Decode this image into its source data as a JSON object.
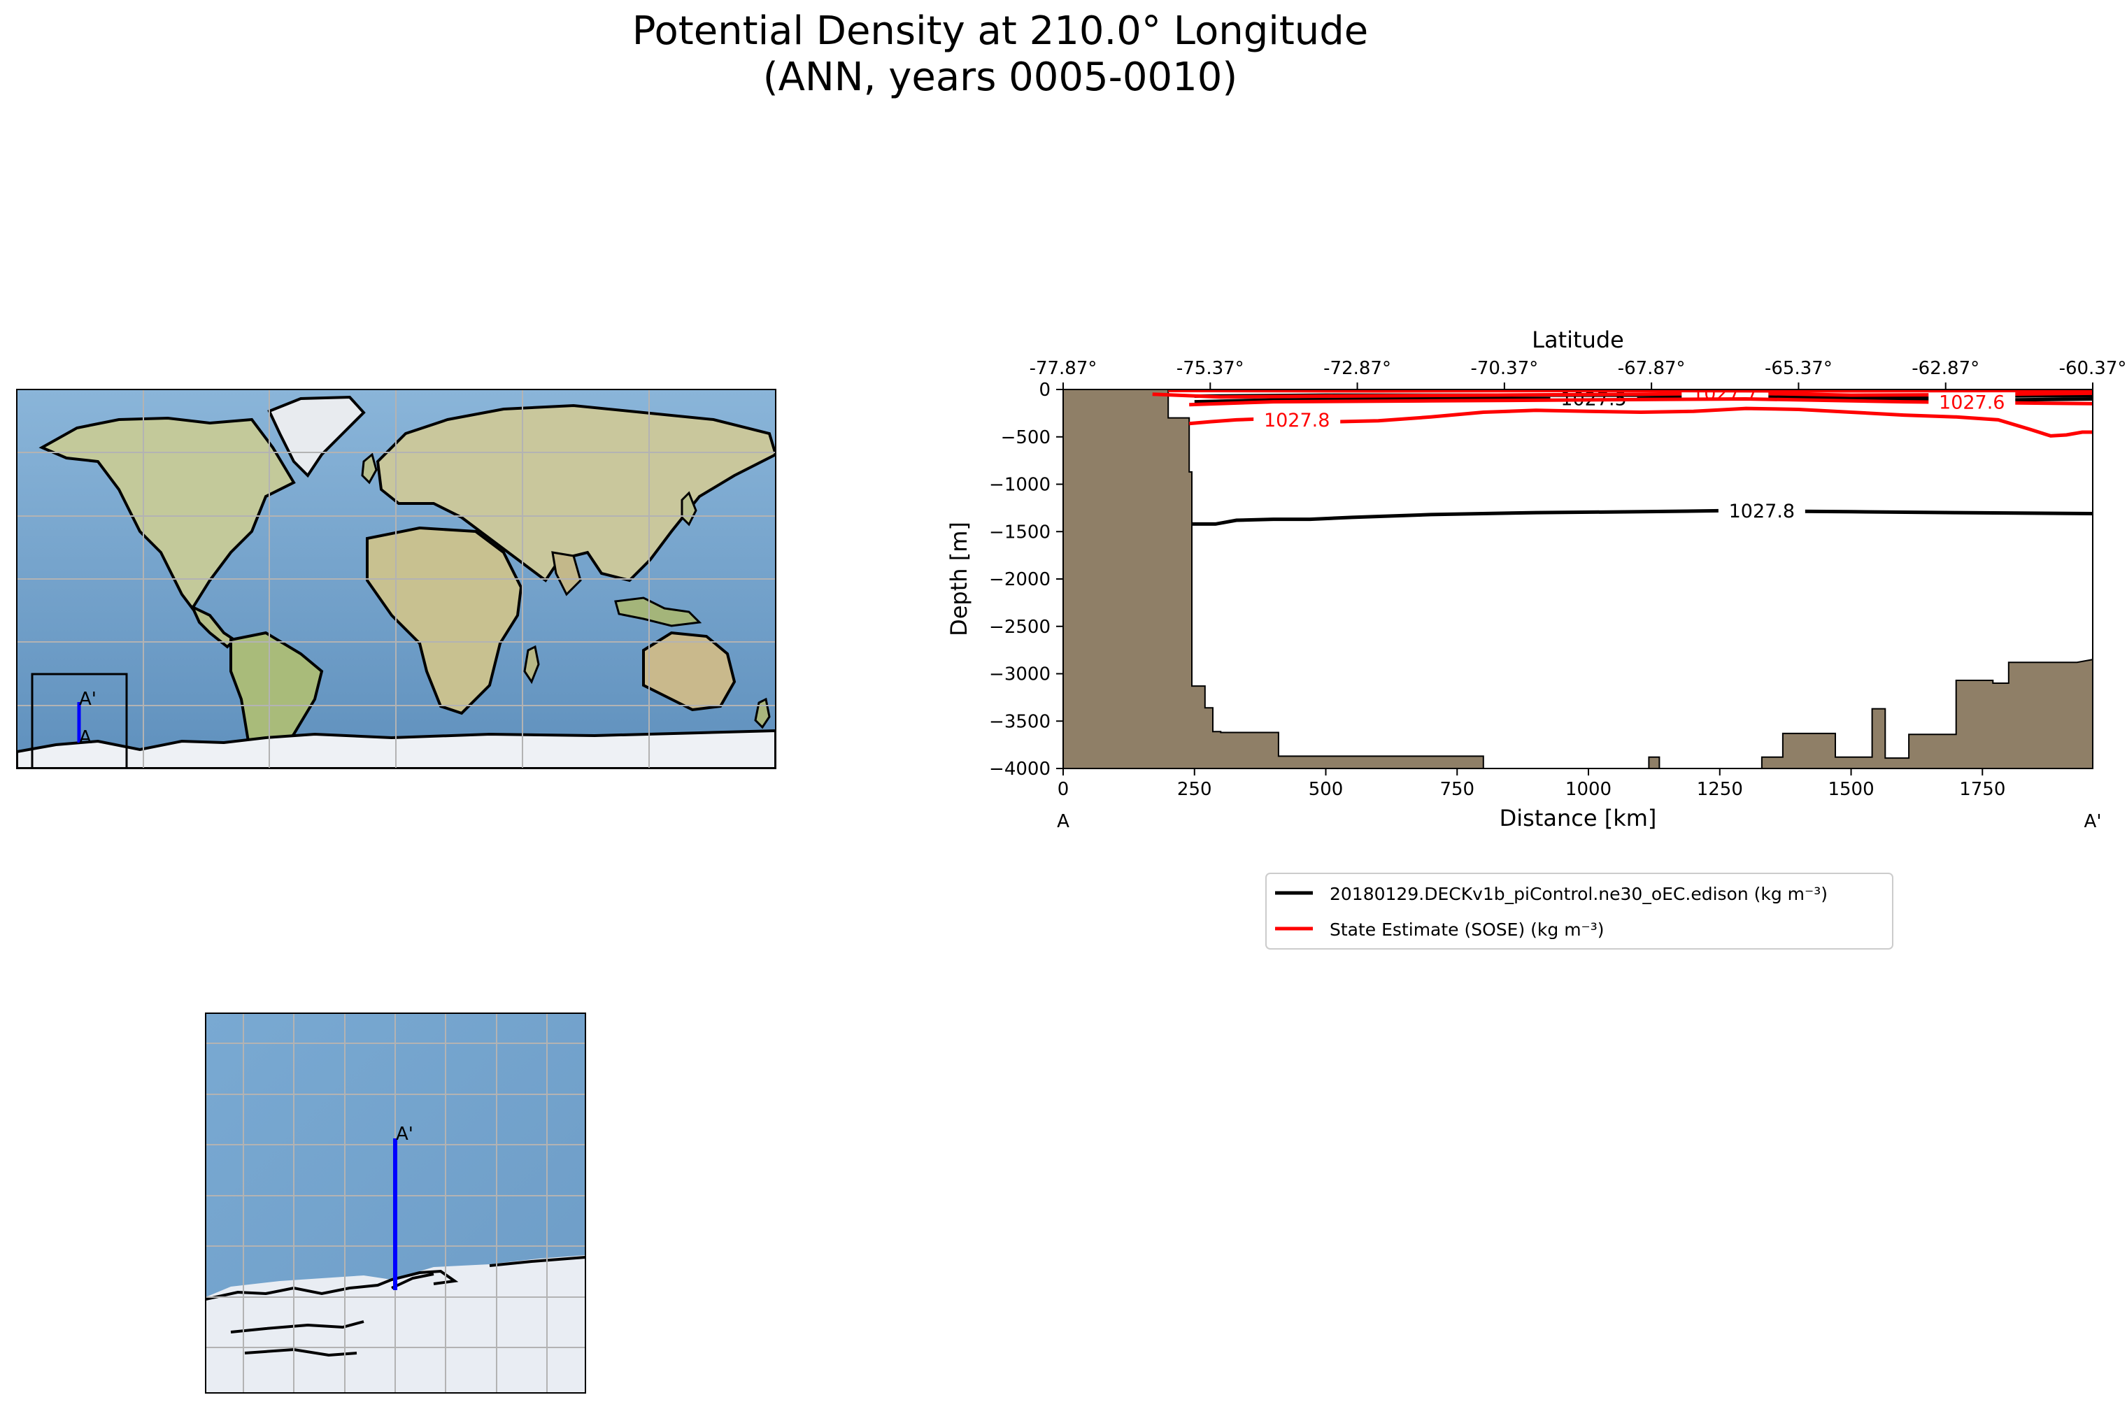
{
  "title": {
    "line1": "Potential Density at 210.0° Longitude",
    "line2": "(ANN, years 0005-0010)"
  },
  "colors": {
    "land": "#8f7f67",
    "model": "#000000",
    "obs": "#ff0000",
    "transect": "#0000ff",
    "ocean": "#6f9fc8",
    "ice": "#eef1f5"
  },
  "global_map": {
    "label_A": "A",
    "label_Aprime": "A'"
  },
  "inset_map": {
    "label_Aprime": "A'"
  },
  "chart_data": {
    "type": "line",
    "xlabel": "Distance [km]",
    "ylabel": "Depth [m]",
    "top_xlabel": "Latitude",
    "xlim": [
      0,
      1960
    ],
    "ylim": [
      -4000,
      0
    ],
    "xticks": [
      0,
      250,
      500,
      750,
      1000,
      1250,
      1500,
      1750
    ],
    "yticks": [
      0,
      -500,
      -1000,
      -1500,
      -2000,
      -2500,
      -3000,
      -3500,
      -4000
    ],
    "top_ticks": [
      {
        "x": 0,
        "label": "-77.87°"
      },
      {
        "x": 280,
        "label": "-75.37°"
      },
      {
        "x": 560,
        "label": "-72.87°"
      },
      {
        "x": 840,
        "label": "-70.37°"
      },
      {
        "x": 1120,
        "label": "-67.87°"
      },
      {
        "x": 1400,
        "label": "-65.37°"
      },
      {
        "x": 1680,
        "label": "-62.87°"
      },
      {
        "x": 1960,
        "label": "-60.37°"
      }
    ],
    "end_labels": {
      "left": "A",
      "right": "A'"
    },
    "bathymetry": [
      [
        0,
        0
      ],
      [
        200,
        0
      ],
      [
        200,
        -300
      ],
      [
        240,
        -300
      ],
      [
        240,
        -870
      ],
      [
        245,
        -870
      ],
      [
        245,
        -3130
      ],
      [
        270,
        -3130
      ],
      [
        270,
        -3360
      ],
      [
        285,
        -3360
      ],
      [
        285,
        -3610
      ],
      [
        300,
        -3610
      ],
      [
        300,
        -3620
      ],
      [
        410,
        -3620
      ],
      [
        410,
        -3870
      ],
      [
        800,
        -3870
      ],
      [
        800,
        -4000
      ],
      [
        1115,
        -4000
      ],
      [
        1115,
        -3880
      ],
      [
        1135,
        -3880
      ],
      [
        1135,
        -4000
      ],
      [
        1330,
        -4000
      ],
      [
        1330,
        -3880
      ],
      [
        1370,
        -3880
      ],
      [
        1370,
        -3630
      ],
      [
        1470,
        -3630
      ],
      [
        1470,
        -3880
      ],
      [
        1540,
        -3880
      ],
      [
        1540,
        -3370
      ],
      [
        1565,
        -3370
      ],
      [
        1565,
        -3890
      ],
      [
        1610,
        -3890
      ],
      [
        1610,
        -3640
      ],
      [
        1700,
        -3640
      ],
      [
        1700,
        -3070
      ],
      [
        1770,
        -3070
      ],
      [
        1770,
        -3100
      ],
      [
        1800,
        -3100
      ],
      [
        1800,
        -2880
      ],
      [
        1930,
        -2880
      ],
      [
        1960,
        -2850
      ],
      [
        1960,
        -4000
      ],
      [
        0,
        -4000
      ]
    ],
    "series": [
      {
        "name": "20180129.DECKv1b_piControl.ne30_oEC.edison (kg m⁻³)",
        "color": "#000000",
        "contours": [
          {
            "label": "1027.8",
            "label_x": 1330,
            "points": [
              [
                245,
                -1420
              ],
              [
                290,
                -1420
              ],
              [
                330,
                -1380
              ],
              [
                400,
                -1370
              ],
              [
                470,
                -1370
              ],
              [
                550,
                -1350
              ],
              [
                700,
                -1320
              ],
              [
                900,
                -1300
              ],
              [
                1100,
                -1290
              ],
              [
                1250,
                -1280
              ],
              [
                1500,
                -1290
              ],
              [
                1700,
                -1300
              ],
              [
                1960,
                -1310
              ]
            ]
          },
          {
            "label": "1027.5",
            "label_x": 1010,
            "points": [
              [
                250,
                -130
              ],
              [
                400,
                -110
              ],
              [
                600,
                -100
              ],
              [
                800,
                -95
              ],
              [
                1000,
                -100
              ],
              [
                1200,
                -95
              ],
              [
                1400,
                -100
              ],
              [
                1600,
                -105
              ],
              [
                1800,
                -110
              ],
              [
                1960,
                -100
              ]
            ]
          },
          {
            "label": "",
            "label_x": 0,
            "points": [
              [
                250,
                -70
              ],
              [
                500,
                -60
              ],
              [
                800,
                -60
              ],
              [
                1100,
                -60
              ],
              [
                1400,
                -70
              ],
              [
                1700,
                -70
              ],
              [
                1960,
                -65
              ]
            ]
          }
        ]
      },
      {
        "name": "State Estimate (SOSE) (kg m⁻³)",
        "color": "#ff0000",
        "contours": [
          {
            "label": "1027.8",
            "label_x": 445,
            "points": [
              [
                240,
                -360
              ],
              [
                280,
                -340
              ],
              [
                330,
                -320
              ],
              [
                380,
                -310
              ],
              [
                430,
                -320
              ],
              [
                520,
                -340
              ],
              [
                600,
                -330
              ],
              [
                700,
                -290
              ],
              [
                800,
                -240
              ],
              [
                900,
                -220
              ],
              [
                1000,
                -230
              ],
              [
                1100,
                -240
              ],
              [
                1200,
                -230
              ],
              [
                1300,
                -200
              ],
              [
                1400,
                -210
              ],
              [
                1500,
                -240
              ],
              [
                1600,
                -270
              ],
              [
                1700,
                -290
              ],
              [
                1780,
                -320
              ],
              [
                1840,
                -420
              ],
              [
                1880,
                -490
              ],
              [
                1910,
                -480
              ],
              [
                1940,
                -450
              ],
              [
                1960,
                -450
              ]
            ]
          },
          {
            "label": "1027.7",
            "label_x": 1260,
            "points": [
              [
                170,
                -50
              ],
              [
                300,
                -80
              ],
              [
                500,
                -70
              ],
              [
                800,
                -60
              ],
              [
                1100,
                -50
              ],
              [
                1300,
                -40
              ],
              [
                1500,
                -60
              ],
              [
                1700,
                -55
              ],
              [
                1960,
                -40
              ]
            ]
          },
          {
            "label": "1027.6",
            "label_x": 1730,
            "points": [
              [
                240,
                -160
              ],
              [
                400,
                -130
              ],
              [
                700,
                -120
              ],
              [
                1000,
                -110
              ],
              [
                1300,
                -100
              ],
              [
                1600,
                -130
              ],
              [
                1960,
                -150
              ]
            ]
          },
          {
            "label": "",
            "label_x": 0,
            "points": [
              [
                200,
                -10
              ],
              [
                600,
                -15
              ],
              [
                1000,
                -10
              ],
              [
                1400,
                -15
              ],
              [
                1960,
                -10
              ]
            ]
          }
        ]
      }
    ]
  }
}
